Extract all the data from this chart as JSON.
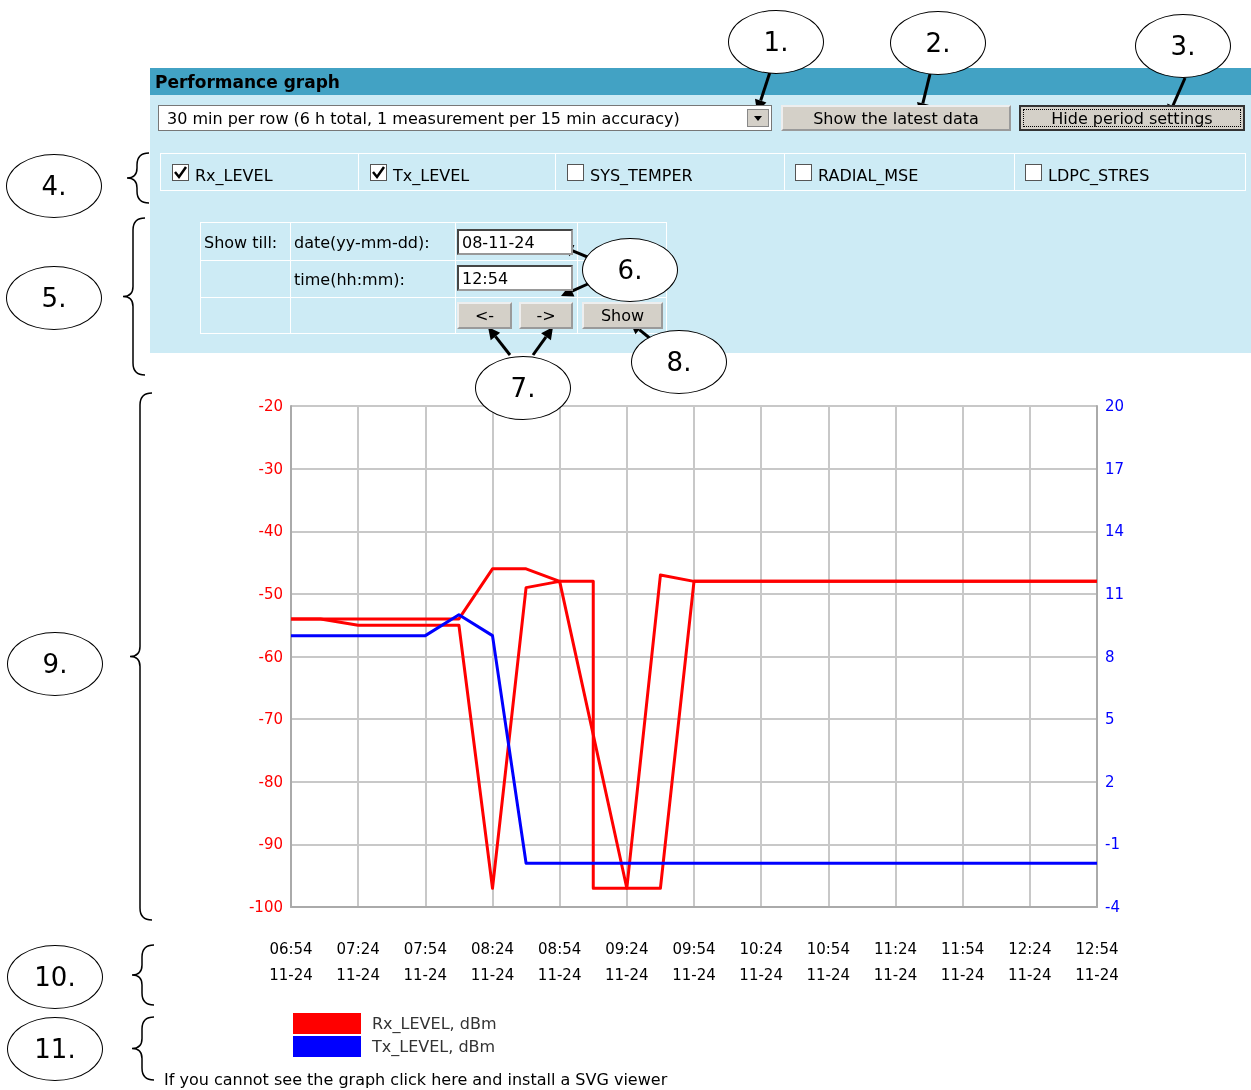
{
  "chart_data": {
    "type": "line",
    "title": "Performance graph",
    "annotations": [
      "30 min per row (6 h total, 1 measurement per 15 min accuracy)",
      "Show the latest data",
      "Hide period settings",
      "Rx_LEVEL",
      "Tx_LEVEL",
      "SYS_TEMPER",
      "RADIAL_MSE",
      "LDPC_STRES",
      "Show till:",
      "date(yy-mm-dd):",
      "08-11-24",
      "time(hh:mm):",
      "12:54",
      "<-",
      "->",
      "Show",
      "1.",
      "2.",
      "3.",
      "4.",
      "5.",
      "6.",
      "7.",
      "8.",
      "9.",
      "10.",
      "11.",
      "If you cannot see the graph click here and install a SVG viewer",
      "11-24",
      "11-24",
      "11-24",
      "11-24",
      "11-24",
      "11-24",
      "11-24",
      "11-24",
      "11-24",
      "11-24",
      "11-24",
      "11-24",
      "11-24"
    ],
    "xlim": [
      6.9,
      12.9
    ],
    "xticks": [
      {
        "value": 6.9,
        "label": "06:54"
      },
      {
        "value": 7.4,
        "label": "07:24"
      },
      {
        "value": 7.9,
        "label": "07:54"
      },
      {
        "value": 8.4,
        "label": "08:24"
      },
      {
        "value": 8.9,
        "label": "08:54"
      },
      {
        "value": 9.4,
        "label": "09:24"
      },
      {
        "value": 9.9,
        "label": "09:54"
      },
      {
        "value": 10.4,
        "label": "10:24"
      },
      {
        "value": 10.9,
        "label": "10:54"
      },
      {
        "value": 11.4,
        "label": "11:24"
      },
      {
        "value": 11.9,
        "label": "11:54"
      },
      {
        "value": 12.4,
        "label": "12:24"
      },
      {
        "value": 12.9,
        "label": "12:54"
      }
    ],
    "ylim": [
      -100,
      -20
    ],
    "yticks": [
      -100,
      -90,
      -80,
      -70,
      -60,
      -50,
      -40,
      -30,
      -20
    ],
    "y2lim": [
      -4,
      20
    ],
    "y2ticks": [
      -4,
      -1,
      2,
      5,
      8,
      11,
      14,
      17,
      20
    ],
    "grid": true,
    "legend": "bottom left",
    "marker": "none",
    "line_style": "solid",
    "series": [
      {
        "name": "Rx_LEVEL, dBm",
        "color": "#ff0000",
        "x": [
          6.9,
          7.12,
          7.4,
          8.15,
          8.4,
          8.65,
          8.9,
          9.4,
          9.65,
          9.9,
          12.9
        ],
        "values": [
          -54,
          -54,
          -55,
          -55,
          -97,
          -49,
          -48,
          -97,
          -47,
          -48,
          -48
        ]
      },
      {
        "color": "#ff0000",
        "x": [
          6.9,
          8.15,
          8.4,
          8.65,
          8.9,
          9.15,
          9.15,
          9.65,
          9.9,
          12.9
        ],
        "values": [
          -54,
          -54,
          -46,
          -46,
          -48,
          -48,
          -97,
          -97,
          -48,
          -48
        ]
      },
      {
        "name": "Tx_LEVEL, dBm",
        "color": "#0000ff",
        "axis": "y2",
        "x": [
          6.9,
          7.9,
          8.15,
          8.4,
          8.65,
          12.9
        ],
        "values": [
          9,
          9,
          10,
          9,
          -1.9,
          -1.9
        ]
      }
    ]
  }
}
